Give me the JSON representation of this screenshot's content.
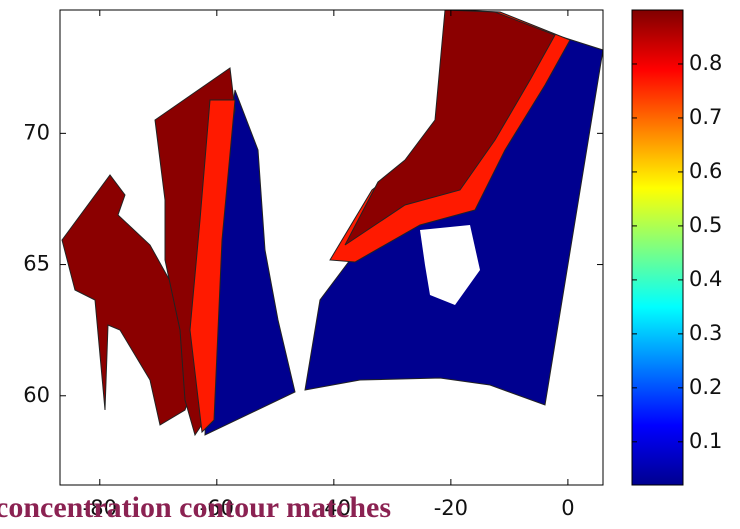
{
  "chart_data": {
    "type": "contour",
    "xlim": [
      -86.8,
      6
    ],
    "xticks": [
      -80,
      -60,
      -40,
      -20,
      0
    ],
    "ylim": [
      56.6,
      74.7
    ],
    "yticks": [
      60,
      65,
      70
    ],
    "colorbar": {
      "lim": [
        0.02,
        0.9
      ],
      "ticks": [
        0.1,
        0.2,
        0.3,
        0.4,
        0.5,
        0.6,
        0.7,
        0.8
      ],
      "colormap": "jet"
    },
    "caption": "concentration contour matches"
  }
}
